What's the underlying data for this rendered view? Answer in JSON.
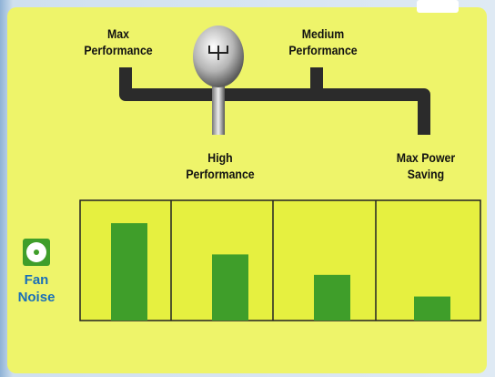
{
  "chart_data": {
    "type": "bar",
    "categories": [
      "Max\nPerformance",
      "High\nPerformance",
      "Medium\nPerformance",
      "Max Power\nSaving"
    ],
    "values": [
      81,
      55,
      38,
      20
    ],
    "color": "#3f9e2a",
    "ylim": [
      0,
      100
    ],
    "y_label": "Fan\nNoise"
  }
}
